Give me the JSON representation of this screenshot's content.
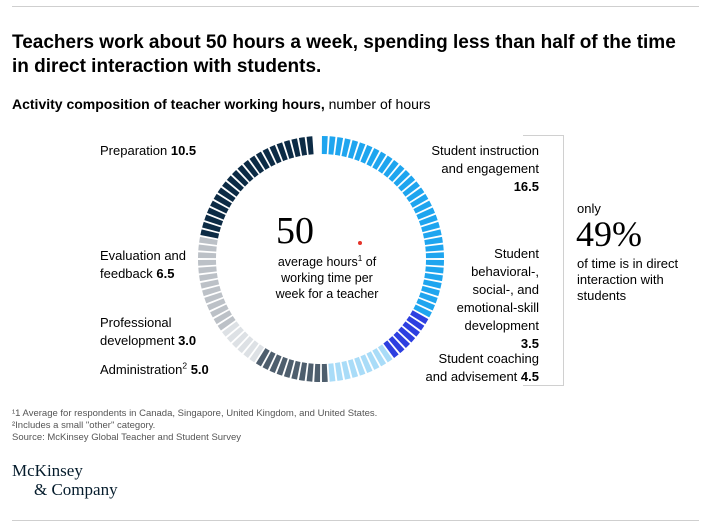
{
  "headline": "Teachers work about 50 hours a week, spending less than half of the time in direct interaction with students.",
  "subtitle": {
    "bold": "Activity composition of teacher working hours,",
    "unit": " number of hours"
  },
  "center": {
    "value": "50",
    "desc_a": "average hours",
    "desc_sup": "1",
    "desc_b": " of working time per week for a teacher"
  },
  "labels": {
    "instruction": {
      "line1": "Student instruction",
      "line2": "and engagement",
      "value": "16.5"
    },
    "behavioral": {
      "lines": [
        "Student",
        "behavioral-,",
        "social-, and",
        "emotional-skill",
        "development"
      ],
      "value": "3.5"
    },
    "coaching": {
      "line1": "Student coaching",
      "line2": "and advisement",
      "value": "4.5"
    },
    "administration": {
      "text": "Administration",
      "sup": "2",
      "value": "5.0"
    },
    "professional": {
      "line1": "Professional",
      "line2": "development",
      "value": "3.0"
    },
    "evaluation": {
      "line1": "Evaluation and",
      "line2": "feedback",
      "value": "6.5"
    },
    "preparation": {
      "text": "Preparation",
      "value": "10.5"
    }
  },
  "share": {
    "pre": "only",
    "value": "49%",
    "post": "of time is in direct interaction with students"
  },
  "footnotes": {
    "f1": "¹1 Average for respondents in Canada, Singapore, United Kingdom, and United States.",
    "f2": "²Includes a small \"other\" category.",
    "source": "Source: McKinsey Global Teacher and Student Survey"
  },
  "logo": {
    "line1": "McKinsey",
    "line2": "& Company"
  },
  "chart_data": {
    "type": "pie",
    "total": 50,
    "categories": [
      "Student instruction and engagement",
      "Student behavioral-, social-, and emotional-skill development",
      "Student coaching and advisement",
      "Administration",
      "Professional development",
      "Evaluation and feedback",
      "Preparation"
    ],
    "values": [
      16.5,
      3.5,
      4.5,
      5.0,
      3.0,
      6.5,
      10.5
    ],
    "colors": [
      "#1ea5ef",
      "#2d3fe0",
      "#a9dcf8",
      "#4e5e6d",
      "#dde1e5",
      "#bcc1c7",
      "#0c2b45"
    ]
  }
}
